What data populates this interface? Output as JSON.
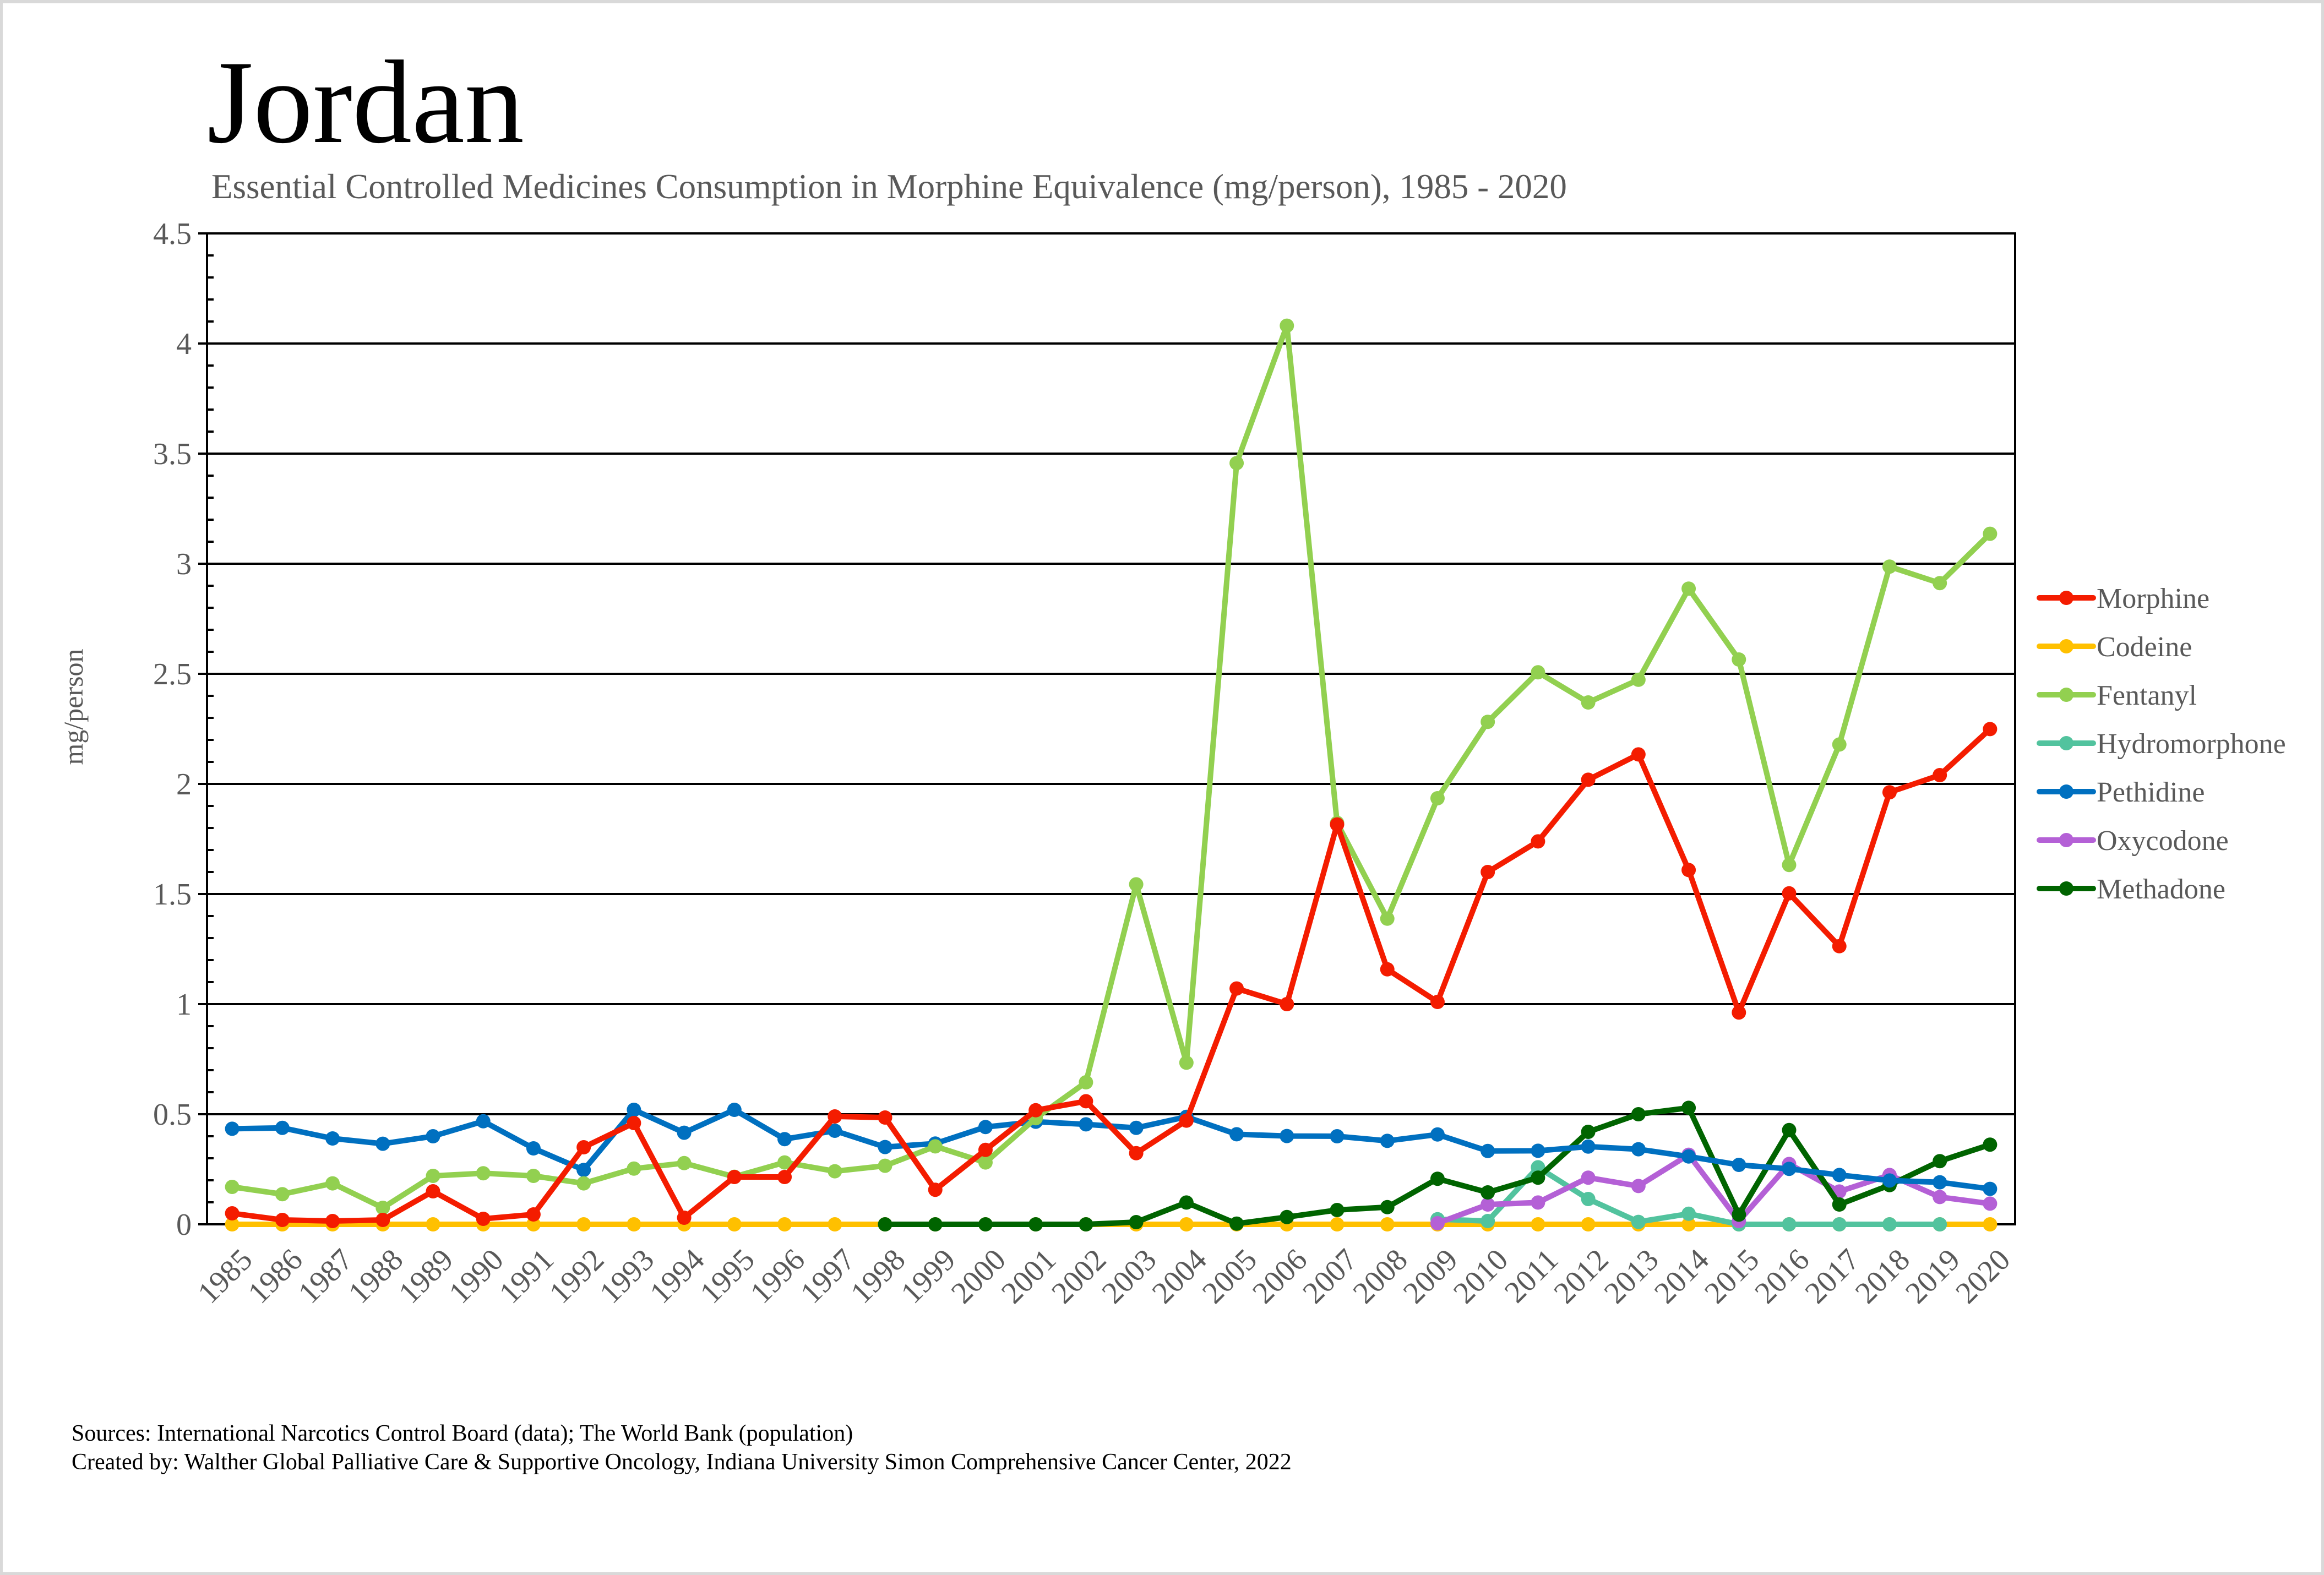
{
  "header": {
    "title": "Jordan",
    "subtitle": "Essential Controlled Medicines Consumption in Morphine Equivalence (mg/person), 1985 - 2020"
  },
  "footer": {
    "sources": "Sources: International Narcotics Control Board (data); The World Bank (population)",
    "created_by": "Created by: Walther Global Palliative Care & Supportive Oncology, Indiana University Simon Comprehensive Cancer Center, 2022"
  },
  "chart_data": {
    "type": "line",
    "title": "Jordan",
    "subtitle": "Essential Controlled Medicines Consumption in Morphine Equivalence (mg/person), 1985 - 2020",
    "xlabel": "",
    "ylabel": "mg/person",
    "ylim": [
      0,
      4.5
    ],
    "y_major_step": 0.5,
    "y_minor_step": 0.1,
    "yticks": [
      "0",
      "0.5",
      "1",
      "1.5",
      "2",
      "2.5",
      "3",
      "3.5",
      "4",
      "4.5"
    ],
    "grid": true,
    "legend_position": "right",
    "x": [
      "1985",
      "1986",
      "1987",
      "1988",
      "1989",
      "1990",
      "1991",
      "1992",
      "1993",
      "1994",
      "1995",
      "1996",
      "1997",
      "1998",
      "1999",
      "2000",
      "2001",
      "2002",
      "2003",
      "2004",
      "2005",
      "2006",
      "2007",
      "2008",
      "2009",
      "2010",
      "2011",
      "2012",
      "2013",
      "2014",
      "2015",
      "2016",
      "2017",
      "2018",
      "2019",
      "2020"
    ],
    "series": [
      {
        "name": "Morphine",
        "color": "#f41c00",
        "values": [
          0.05,
          0.02,
          0.015,
          0.02,
          0.15,
          0.025,
          0.045,
          0.35,
          0.46,
          0.03,
          0.215,
          0.215,
          0.49,
          0.485,
          0.157,
          0.338,
          0.518,
          0.559,
          0.323,
          0.471,
          1.071,
          1.0,
          1.816,
          1.158,
          1.01,
          1.6,
          1.739,
          2.019,
          2.134,
          1.609,
          0.962,
          1.503,
          1.263,
          1.962,
          2.04,
          2.249
        ]
      },
      {
        "name": "Codeine",
        "color": "#ffc000",
        "values": [
          0,
          0,
          0,
          0,
          0,
          0,
          0,
          0,
          0,
          0,
          0,
          0,
          0,
          0,
          0,
          0,
          0,
          0,
          0,
          0,
          0,
          0,
          0,
          0,
          0,
          0,
          0,
          0,
          0,
          0,
          0,
          0,
          0,
          0,
          0,
          0
        ]
      },
      {
        "name": "Fentanyl",
        "color": "#92d050",
        "values": [
          0.17,
          0.137,
          0.186,
          0.075,
          0.22,
          0.232,
          0.22,
          0.186,
          0.253,
          0.278,
          0.216,
          0.281,
          0.241,
          0.266,
          0.354,
          0.281,
          0.482,
          0.645,
          1.544,
          0.734,
          3.457,
          4.081,
          1.823,
          1.388,
          1.935,
          2.282,
          2.507,
          2.37,
          2.473,
          2.887,
          2.565,
          1.632,
          2.179,
          2.987,
          2.912,
          3.136
        ]
      },
      {
        "name": "Hydromorphone",
        "color": "#52c39e",
        "values": [
          null,
          null,
          null,
          null,
          null,
          null,
          null,
          null,
          null,
          null,
          null,
          null,
          null,
          null,
          null,
          null,
          null,
          null,
          null,
          null,
          null,
          null,
          null,
          null,
          0.023,
          0.015,
          0.259,
          0.115,
          0.011,
          0.048,
          0,
          0,
          0,
          0,
          0,
          null
        ]
      },
      {
        "name": "Pethidine",
        "color": "#0070c0",
        "values": [
          0.434,
          0.438,
          0.39,
          0.366,
          0.4,
          0.468,
          0.345,
          0.247,
          0.52,
          0.416,
          0.52,
          0.387,
          0.425,
          0.351,
          0.367,
          0.442,
          0.466,
          0.454,
          0.438,
          0.488,
          0.409,
          0.401,
          0.4,
          0.379,
          0.408,
          0.333,
          0.334,
          0.353,
          0.341,
          0.308,
          0.27,
          0.252,
          0.224,
          0.199,
          0.191,
          0.161
        ]
      },
      {
        "name": "Oxycodone",
        "color": "#b460d6",
        "values": [
          null,
          null,
          null,
          null,
          null,
          null,
          null,
          null,
          null,
          null,
          null,
          null,
          null,
          null,
          null,
          null,
          null,
          null,
          null,
          null,
          null,
          null,
          null,
          null,
          0.005,
          0.09,
          0.099,
          0.212,
          0.174,
          0.316,
          0.015,
          0.274,
          0.149,
          0.224,
          0.124,
          0.094
        ]
      },
      {
        "name": "Methadone",
        "color": "#006400",
        "values": [
          null,
          null,
          null,
          null,
          null,
          null,
          null,
          null,
          null,
          null,
          null,
          null,
          null,
          0,
          0,
          0,
          0,
          0,
          0.01,
          0.099,
          0.003,
          0.033,
          0.065,
          0.078,
          0.207,
          0.145,
          0.212,
          0.42,
          0.5,
          0.529,
          0.044,
          0.428,
          0.09,
          0.178,
          0.287,
          0.362
        ]
      }
    ]
  }
}
